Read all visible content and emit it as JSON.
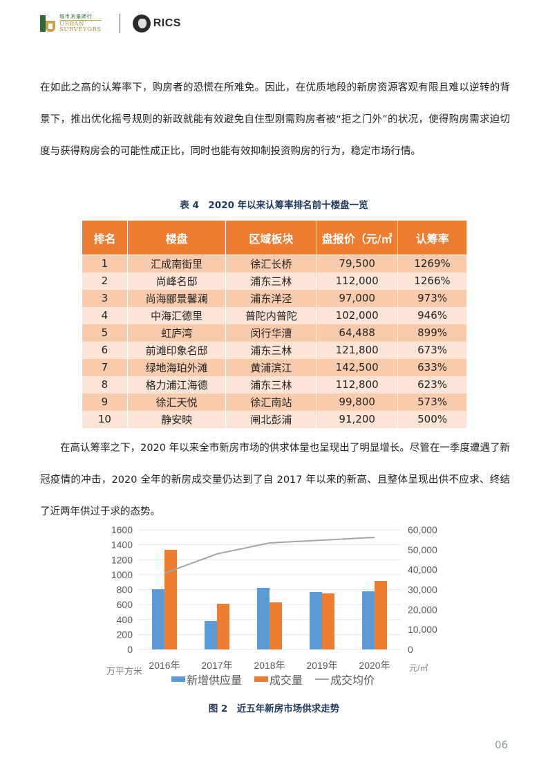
{
  "header": {
    "urban_surveyors": {
      "cn": "城市測量師行",
      "en_line1": "URBAN",
      "en_line2": "SURVEYORS"
    },
    "rics": {
      "label": "RICS"
    }
  },
  "paragraphs": {
    "p1": "在如此之高的认筹率下，购房者的恐慌在所难免。因此，在优质地段的新房资源客观有限且难以逆转的背景下，推出优化摇号规则的新政就能有效避免自住型刚需购房者被“拒之门外”的状况，使得购房需求迫切度与获得购房会的可能性成正比，同时也能有效抑制投资购房的行为，稳定市场行情。",
    "p2": "在高认筹率之下，2020 年以来全市新房市场的供求体量也呈现出了明显增长。尽管在一季度遭遇了新冠疫情的冲击，2020 全年的新房成交量仍达到了自 2017 年以来的新高、且整体呈现出供不应求、终结了近两年供过于求的态势。"
  },
  "table": {
    "caption": "表 4　2020 年以来认筹率排名前十楼盘一览",
    "headers": [
      "排名",
      "楼盘",
      "区域板块",
      "盘报价（元/㎡",
      "认筹率"
    ],
    "rows": [
      [
        "1",
        "汇成南街里",
        "徐汇长桥",
        "79,500",
        "1269%"
      ],
      [
        "2",
        "尚峰名邸",
        "浦东三林",
        "112,000",
        "1266%"
      ],
      [
        "3",
        "尚海郦景馨澜",
        "浦东洋泾",
        "97,000",
        "973%"
      ],
      [
        "4",
        "中海汇德里",
        "普陀内普陀",
        "102,000",
        "946%"
      ],
      [
        "5",
        "虹庐湾",
        "闵行华漕",
        "64,488",
        "899%"
      ],
      [
        "6",
        "前滩印象名邸",
        "浦东三林",
        "121,800",
        "673%"
      ],
      [
        "7",
        "绿地海珀外滩",
        "黄浦滨江",
        "142,500",
        "633%"
      ],
      [
        "8",
        "格力浦江海德",
        "浦东三林",
        "112,800",
        "623%"
      ],
      [
        "9",
        "徐汇天悦",
        "徐汇南站",
        "99,800",
        "573%"
      ],
      [
        "10",
        "静安映",
        "闸北彭浦",
        "91,200",
        "500%"
      ]
    ]
  },
  "chart_data": {
    "type": "bar",
    "title": "图 2　近五年新房市场供求走势",
    "categories": [
      "2016年",
      "2017年",
      "2018年",
      "2019年",
      "2020年"
    ],
    "series": [
      {
        "name": "新增供应量",
        "type": "bar",
        "axis": "left",
        "color": "#5b9bd5",
        "values": [
          805,
          380,
          823,
          768,
          777
        ]
      },
      {
        "name": "成交量",
        "type": "bar",
        "axis": "left",
        "color": "#ed7d31",
        "values": [
          1332,
          610,
          629,
          749,
          916
        ]
      },
      {
        "name": "成交均价",
        "type": "line",
        "axis": "right",
        "color": "#a5a5a5",
        "values": [
          38200,
          47900,
          53400,
          54800,
          56200
        ]
      }
    ],
    "left_axis": {
      "label": "万平方米",
      "ticks": [
        "0",
        "200",
        "400",
        "600",
        "800",
        "1000",
        "1200",
        "1400",
        "1600"
      ],
      "ylim": [
        0,
        1600
      ]
    },
    "right_axis": {
      "label": "元/㎡",
      "ticks": [
        "0",
        "10,000",
        "20,000",
        "30,000",
        "40,000",
        "50,000",
        "60,000"
      ],
      "ylim": [
        0,
        60000
      ]
    },
    "legend": {
      "position": "bottom",
      "entries": [
        "新增供应量",
        "成交量",
        "成交均价"
      ]
    },
    "grid": true
  },
  "footer": {
    "page_number": "06"
  }
}
